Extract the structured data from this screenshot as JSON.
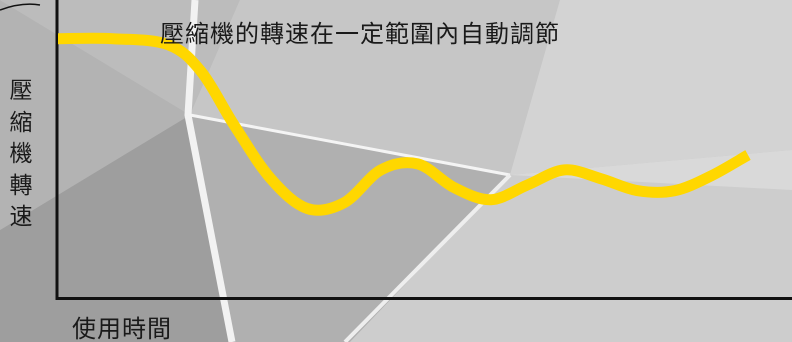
{
  "chart_data": {
    "type": "line",
    "title": "壓縮機的轉速在一定範圍內自動調節",
    "xlabel": "使用時間",
    "ylabel": "壓縮機轉速",
    "xlim": [
      0,
      100
    ],
    "ylim": [
      0,
      100
    ],
    "grid": false,
    "axis_ticks": false,
    "series": [
      {
        "color": "#ffd700",
        "x": [
          0,
          7.5,
          15,
          19.5,
          24,
          29,
          34,
          39,
          44,
          49,
          54,
          59,
          64,
          69,
          74,
          79,
          84,
          89,
          94
        ],
        "y": [
          87,
          87,
          85,
          76,
          58,
          40,
          30,
          32,
          43,
          45,
          37,
          33,
          38,
          43,
          40,
          36,
          36,
          41,
          48
        ]
      }
    ]
  },
  "colors": {
    "background": "#c9c9c9",
    "axis": "#111111",
    "curve": "#ffd700"
  }
}
